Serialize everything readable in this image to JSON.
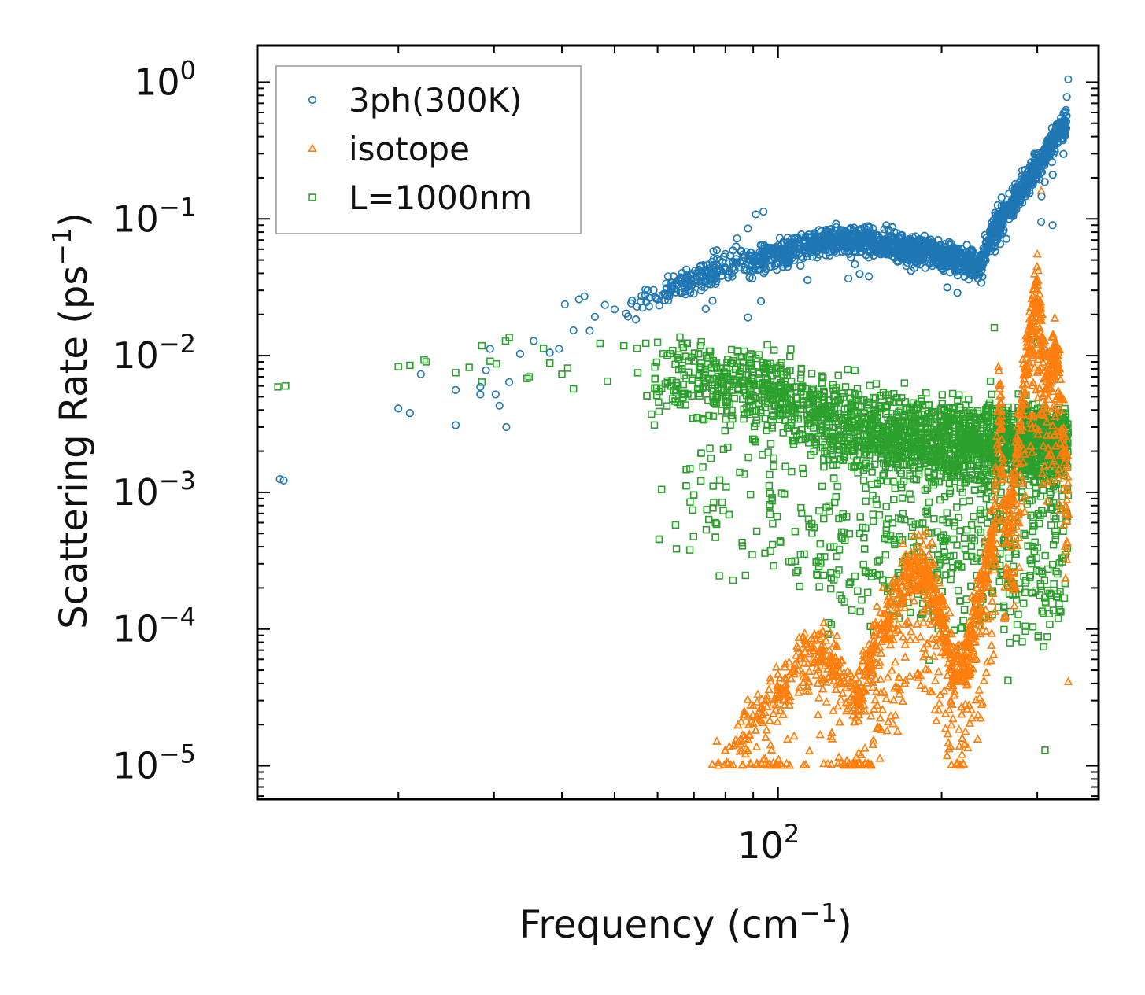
{
  "chart_data": {
    "type": "scatter",
    "xscale": "log",
    "yscale": "log",
    "xlabel": "Frequency (cm",
    "xlabel_sup": "−1",
    "xlabel_end": ")",
    "ylabel": "Scattering Rate (ps",
    "ylabel_sup": "−1",
    "ylabel_end": ")",
    "xlim": [
      11.0,
      389.0
    ],
    "ylim": [
      5.7e-06,
      1.85
    ],
    "x_major_ticks": [
      {
        "value": 100,
        "base": "10",
        "exp": "2"
      }
    ],
    "y_major_ticks": [
      {
        "value": 1,
        "base": "10",
        "exp": "0"
      },
      {
        "value": 0.1,
        "base": "10",
        "exp": "−1"
      },
      {
        "value": 0.01,
        "base": "10",
        "exp": "−2"
      },
      {
        "value": 0.001,
        "base": "10",
        "exp": "−3"
      },
      {
        "value": 0.0001,
        "base": "10",
        "exp": "−4"
      },
      {
        "value": 1e-05,
        "base": "10",
        "exp": "−5"
      }
    ],
    "legend_position": "top-left",
    "series": [
      {
        "name": "3ph(300K)",
        "marker": "circle",
        "color": "#1f77b4",
        "points": [
          [
            12.1,
            0.00125
          ],
          [
            12.3,
            0.00122
          ],
          [
            20.0,
            0.0041
          ],
          [
            21.0,
            0.0038
          ],
          [
            22.0,
            0.0073
          ],
          [
            25.5,
            0.0056
          ],
          [
            25.5,
            0.0031
          ],
          [
            28.3,
            0.0052
          ],
          [
            28.3,
            0.0059
          ],
          [
            29.0,
            0.0078
          ],
          [
            29.5,
            0.0112
          ],
          [
            30.2,
            0.0052
          ],
          [
            30.7,
            0.0043
          ],
          [
            31.6,
            0.003
          ],
          [
            32.0,
            0.0064
          ],
          [
            33.5,
            0.0103
          ],
          [
            35.5,
            0.0128
          ],
          [
            38.0,
            0.0105
          ],
          [
            39.5,
            0.0112
          ],
          [
            40.5,
            0.0237
          ],
          [
            42.0,
            0.0153
          ],
          [
            43.0,
            0.0258
          ],
          [
            44.0,
            0.0271
          ],
          [
            45.0,
            0.0152
          ],
          [
            46.0,
            0.0192
          ],
          [
            48.0,
            0.0235
          ],
          [
            50.0,
            0.0218
          ],
          [
            52.5,
            0.0203
          ],
          [
            55.0,
            0.0228
          ],
          [
            57.0,
            0.0305
          ],
          [
            60.0,
            0.0257
          ],
          [
            62.0,
            0.0278
          ],
          [
            65.0,
            0.0338
          ],
          [
            68.0,
            0.039
          ],
          [
            72.0,
            0.0455
          ],
          [
            76.0,
            0.058
          ],
          [
            80.0,
            0.0555
          ],
          [
            84.0,
            0.072
          ],
          [
            88.0,
            0.085
          ],
          [
            91.0,
            0.108
          ],
          [
            94.0,
            0.113
          ],
          [
            88.0,
            0.019
          ],
          [
            305.0,
            0.095
          ],
          [
            320.0,
            0.09
          ],
          [
            335.0,
            0.52
          ],
          [
            340.0,
            0.78
          ],
          [
            342.0,
            1.05
          ]
        ]
      },
      {
        "name": "isotope",
        "marker": "triangle",
        "color": "#ff7f0e",
        "points": [
          [
            339.0,
            0.00037
          ],
          [
            340.0,
            0.00032
          ],
          [
            341.0,
            0.00042
          ],
          [
            342.0,
            4.1e-05
          ],
          [
            343.0,
            0.00068
          ],
          [
            300.0,
            0.055
          ],
          [
            305.0,
            0.16
          ]
        ]
      },
      {
        "name": "L=1000nm",
        "marker": "square",
        "color": "#2ca02c",
        "points": [
          [
            12.0,
            0.0059
          ],
          [
            12.4,
            0.006
          ],
          [
            20.0,
            0.0083
          ],
          [
            21.0,
            0.0085
          ],
          [
            22.3,
            0.0093
          ],
          [
            22.5,
            0.009
          ],
          [
            25.5,
            0.0075
          ],
          [
            27.0,
            0.0082
          ],
          [
            28.5,
            0.0118
          ],
          [
            28.5,
            0.0064
          ],
          [
            29.5,
            0.0091
          ],
          [
            30.3,
            0.0087
          ],
          [
            31.5,
            0.0128
          ],
          [
            32.0,
            0.0136
          ],
          [
            34.5,
            0.0068
          ],
          [
            34.8,
            0.007
          ],
          [
            37.0,
            0.0113
          ],
          [
            38.0,
            0.0088
          ],
          [
            40.0,
            0.0073
          ],
          [
            41.0,
            0.0081
          ],
          [
            42.0,
            0.0057
          ],
          [
            47.0,
            0.0123
          ],
          [
            48.5,
            0.0065
          ],
          [
            52.0,
            0.0118
          ],
          [
            55.0,
            0.0113
          ],
          [
            60.0,
            0.0125
          ],
          [
            64.0,
            0.0109
          ],
          [
            67.0,
            0.0052
          ],
          [
            68.0,
            0.0123
          ],
          [
            72.0,
            0.0118
          ],
          [
            76.0,
            0.0036
          ],
          [
            85.0,
            0.0014
          ],
          [
            108.0,
            0.00026
          ],
          [
            110.0,
            0.00035
          ],
          [
            150.0,
            9.5e-05
          ],
          [
            215.0,
            0.0003
          ],
          [
            246.0,
            0.0065
          ],
          [
            250.0,
            0.016
          ],
          [
            265.0,
            4.2e-05
          ],
          [
            300.0,
            0.0124
          ],
          [
            310.0,
            1.3e-05
          ],
          [
            326.0,
            0.0078
          ],
          [
            335.0,
            0.00033
          ],
          [
            340.0,
            0.0007
          ],
          [
            342.0,
            0.00095
          ]
        ]
      }
    ]
  }
}
